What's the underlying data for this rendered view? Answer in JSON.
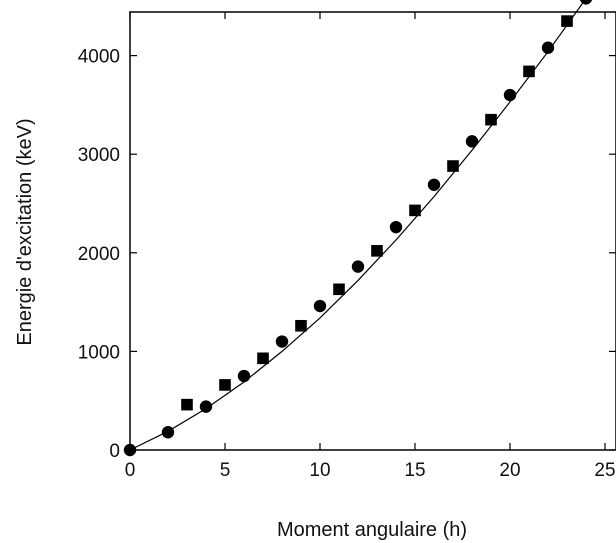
{
  "chart_data": {
    "type": "scatter",
    "title": "",
    "xlabel": "Moment angulaire (h)",
    "ylabel": "Energie d'excitation (keV)",
    "xlim": [
      0,
      25
    ],
    "ylim": [
      0,
      4700
    ],
    "xticks": [
      0,
      5,
      10,
      15,
      20,
      25
    ],
    "yticks": [
      0,
      1000,
      2000,
      3000,
      4000
    ],
    "grid": false,
    "series": [
      {
        "marker": "circle",
        "color": "#000000",
        "x": [
          0,
          2,
          4,
          6,
          8,
          10,
          12,
          14,
          16,
          18,
          20,
          22,
          24
        ],
        "y": [
          0,
          180,
          440,
          750,
          1100,
          1460,
          1860,
          2260,
          2690,
          3130,
          3600,
          4080,
          4580
        ]
      },
      {
        "marker": "square",
        "color": "#000000",
        "x": [
          3,
          5,
          7,
          9,
          11,
          13,
          15,
          17,
          19,
          21,
          23
        ],
        "y": [
          460,
          660,
          930,
          1260,
          1630,
          2020,
          2430,
          2880,
          3350,
          3840,
          4350
        ]
      },
      {
        "marker": "none",
        "style": "line",
        "color": "#000000",
        "x": [
          0,
          2,
          4,
          6,
          8,
          10,
          12,
          14,
          16,
          18,
          20,
          22,
          24
        ],
        "y": [
          0,
          190,
          420,
          690,
          1000,
          1340,
          1720,
          2130,
          2570,
          3040,
          3530,
          4040,
          4580
        ]
      }
    ]
  }
}
